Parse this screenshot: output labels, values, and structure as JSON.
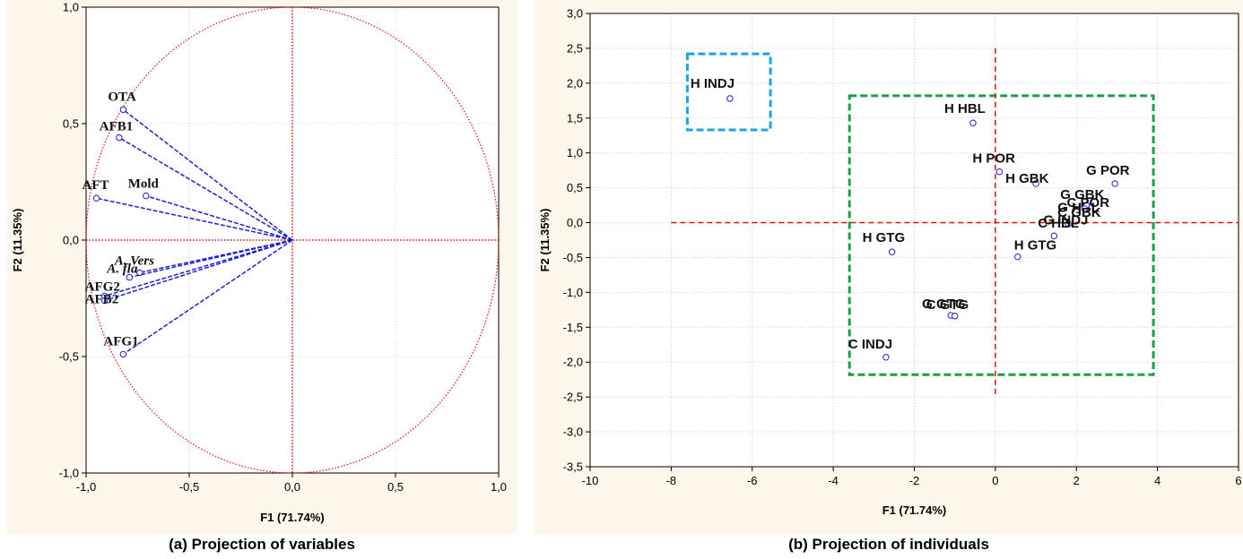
{
  "chart_data": [
    {
      "type": "scatter",
      "subtype": "correlation-circle",
      "caption": "(a) Projection of variables",
      "xlabel": "F1 (71.74%)",
      "ylabel": "F2 (11.35%)",
      "xlim": [
        -1.0,
        1.0
      ],
      "ylim": [
        -1.0,
        1.0
      ],
      "xticks": [
        "-1,0",
        "-0,5",
        "0,0",
        "0,5",
        "1,0"
      ],
      "yticks": [
        "-1,0",
        "-0,5",
        "0,0",
        "0,5",
        "1,0"
      ],
      "grid": true,
      "points": [
        {
          "label": "OTA",
          "x": -0.82,
          "y": 0.56,
          "italic": false
        },
        {
          "label": "AFB1",
          "x": -0.84,
          "y": 0.44,
          "italic": false
        },
        {
          "label": "AFT",
          "x": -0.95,
          "y": 0.18,
          "italic": false
        },
        {
          "label": "Mold",
          "x": -0.71,
          "y": 0.19,
          "italic": false
        },
        {
          "label": "A. Vers",
          "x": -0.74,
          "y": -0.14,
          "italic": true
        },
        {
          "label": "A. fla",
          "x": -0.79,
          "y": -0.16,
          "italic": true
        },
        {
          "label": "AFG2",
          "x": -0.91,
          "y": -0.24,
          "italic": false
        },
        {
          "label": "AFB2",
          "x": -0.91,
          "y": -0.26,
          "italic": false
        },
        {
          "label": "AFG1",
          "x": -0.82,
          "y": -0.49,
          "italic": false
        }
      ],
      "colors": {
        "vector": "#1f1fd0",
        "circle": "#e01010",
        "point": "#1f1fd0"
      }
    },
    {
      "type": "scatter",
      "caption": "(b) Projection of individuals",
      "xlabel": "F1 (71.74%)",
      "ylabel": "F2 (11.35%)",
      "xlim": [
        -10,
        6
      ],
      "ylim": [
        -3.5,
        3.0
      ],
      "xticks": [
        "-10",
        "-8",
        "-6",
        "-4",
        "-2",
        "0",
        "2",
        "4",
        "6"
      ],
      "yticks": [
        "-3,5",
        "-3,0",
        "-2,5",
        "-2,0",
        "-1,5",
        "-1,0",
        "-0,5",
        "0,0",
        "0,5",
        "1,0",
        "1,5",
        "2,0",
        "2,5",
        "3,0"
      ],
      "grid": true,
      "points": [
        {
          "label": "H INDJ",
          "x": -6.55,
          "y": 1.78
        },
        {
          "label": "H HBL",
          "x": -0.55,
          "y": 1.43
        },
        {
          "label": "H POR",
          "x": 0.1,
          "y": 0.73
        },
        {
          "label": "H GBK",
          "x": 1.0,
          "y": 0.56
        },
        {
          "label": "G POR",
          "x": 2.95,
          "y": 0.56
        },
        {
          "label": "G GBK",
          "x": 2.2,
          "y": 0.3
        },
        {
          "label": "G HBL",
          "x": 2.2,
          "y": 0.22
        },
        {
          "label": "C POR",
          "x": 2.25,
          "y": 0.25
        },
        {
          "label": "C GBK",
          "x": 2.2,
          "y": 0.2
        },
        {
          "label": "C HBL",
          "x": 1.8,
          "y": -0.02
        },
        {
          "label": "G INDJ",
          "x": 1.45,
          "y": -0.19
        },
        {
          "label": "H GTG",
          "x": 0.55,
          "y": -0.49
        },
        {
          "label": "H GTG",
          "x": -2.55,
          "y": -0.42
        },
        {
          "label": "G GTG",
          "x": -1.1,
          "y": -1.33
        },
        {
          "label": "C GTG",
          "x": -1.0,
          "y": -1.34
        },
        {
          "label": "C INDJ",
          "x": -2.7,
          "y": -1.93
        }
      ],
      "boxes": [
        {
          "name": "outlier-box",
          "color": "#1aa7e0",
          "x": [
            -7.6,
            -5.55
          ],
          "y": [
            1.33,
            2.42
          ]
        },
        {
          "name": "cluster-box",
          "color": "#1aa048",
          "x": [
            -3.6,
            3.9
          ],
          "y": [
            -2.18,
            1.82
          ]
        }
      ],
      "colors": {
        "axis_line": "#e01010",
        "point": "#1f1fd0"
      }
    }
  ]
}
